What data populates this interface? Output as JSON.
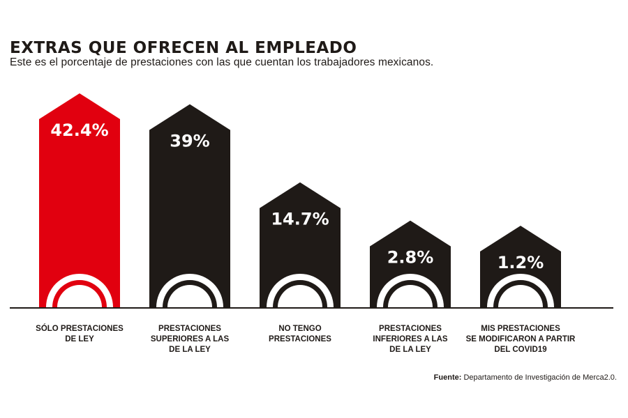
{
  "header": {
    "title": "EXTRAS QUE OFRECEN AL EMPLEADO",
    "subtitle": "Este es el porcentaje de prestaciones con las que cuentan los trabajadores mexicanos."
  },
  "source": {
    "label": "Fuente:",
    "text": "Departamento de Investigación de Merca2.0."
  },
  "colors": {
    "highlight": "#e1000f",
    "bar": "#1f1a17",
    "value_text": "#ffffff"
  },
  "chart_data": {
    "type": "bar",
    "categories": [
      "SÓLO PRESTACIONES DE LEY",
      "PRESTACIONES SUPERIORES A LAS DE LA LEY",
      "NO TENGO PRESTACIONES",
      "PRESTACIONES INFERIORES A LAS DE LA LEY",
      "MIS PRESTACIONES SE MODIFICARON A PARTIR DEL COVID19"
    ],
    "category_lines": [
      [
        "SÓLO PRESTACIONES",
        "DE LEY"
      ],
      [
        "PRESTACIONES",
        "SUPERIORES A LAS",
        "DE LA LEY"
      ],
      [
        "NO TENGO",
        "PRESTACIONES"
      ],
      [
        "PRESTACIONES",
        "INFERIORES A LAS",
        "DE LA LEY"
      ],
      [
        "MIS PRESTACIONES",
        "SE MODIFICARON A PARTIR",
        "DEL COVID19"
      ]
    ],
    "values": [
      42.4,
      39,
      14.7,
      2.8,
      1.2
    ],
    "value_labels": [
      "42.4%",
      "39%",
      "14.7%",
      "2.8%",
      "1.2%"
    ],
    "highlight_index": 0,
    "unit": "%",
    "xlabel": "",
    "ylabel": ""
  }
}
